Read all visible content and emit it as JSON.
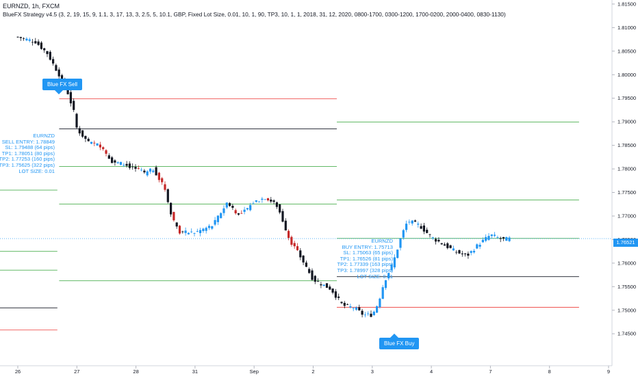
{
  "header": {
    "title": "EURNZD, 1h, FXCM",
    "strategy": "BlueFX Strategy v4.5 (3, 2, 19, 15, 9, 1.1, 3, 17, 13, 3, 2.5, 5, 10.1, GBP, Fixed Lot Size, 0.01, 10, 1, 90, TP3, 10, 1, 1, 2018, 31, 12, 2020, 0800-1700, 0300-1200, 1700-0200, 2000-0400, 0830-1130)"
  },
  "colors": {
    "up": "#2196f3",
    "down": "#131722",
    "down_accent": "#c62828",
    "tp": "#4caf50",
    "sl": "#ef5350",
    "entry": "#131722",
    "accent": "#2196f3"
  },
  "sell_signal": {
    "label": "Blue FX Sell",
    "info": [
      "EURNZD",
      "SELL ENTRY: 1.78849",
      "SL: 1.79488 (64 pips)",
      "TP1: 1.78051 (80 pips)",
      "TP2: 1.77253 (160 pips)",
      "TP3: 1.75625 (322 pips)",
      "LOT SIZE: 0.01"
    ]
  },
  "buy_signal": {
    "label": "Blue FX Buy",
    "info": [
      "EURNZD",
      "BUY ENTRY: 1.75713",
      "SL: 1.75063 (65 pips)",
      "TP1: 1.76526 (81 pips)",
      "TP2: 1.77339 (163 pips)",
      "TP3: 1.78997 (328 pips)",
      "LOT SIZE: 0.01"
    ]
  },
  "current_price": "1.76521",
  "chart_data": {
    "type": "candlestick",
    "symbol": "EURNZD",
    "timeframe": "1h",
    "ylim": [
      1.7425,
      1.8155
    ],
    "y_ticks": [
      "1.81500",
      "1.81000",
      "1.80500",
      "1.80000",
      "1.79500",
      "1.79000",
      "1.78500",
      "1.78000",
      "1.77500",
      "1.77000",
      "1.76500",
      "1.76000",
      "1.75500",
      "1.75000",
      "1.74500"
    ],
    "x_ticks": [
      "26",
      "27",
      "28",
      "31",
      "Sep",
      "2",
      "3",
      "4",
      "7",
      "8",
      "9"
    ],
    "price_path": [
      [
        0,
        1.808
      ],
      [
        0.3,
        1.807
      ],
      [
        0.5,
        1.8045
      ],
      [
        0.7,
        1.8
      ],
      [
        0.85,
        1.796
      ],
      [
        0.95,
        1.792
      ],
      [
        1.0,
        1.7885
      ],
      [
        1.2,
        1.7855
      ],
      [
        1.4,
        1.785
      ],
      [
        1.6,
        1.7815
      ],
      [
        1.8,
        1.781
      ],
      [
        2.0,
        1.78
      ],
      [
        2.15,
        1.779
      ],
      [
        2.3,
        1.78
      ],
      [
        2.5,
        1.7755
      ],
      [
        2.6,
        1.77
      ],
      [
        2.75,
        1.7665
      ],
      [
        3.0,
        1.7665
      ],
      [
        3.3,
        1.768
      ],
      [
        3.55,
        1.773
      ],
      [
        3.75,
        1.77
      ],
      [
        4.0,
        1.773
      ],
      [
        4.2,
        1.774
      ],
      [
        4.4,
        1.772
      ],
      [
        4.6,
        1.765
      ],
      [
        4.8,
        1.761
      ],
      [
        5.0,
        1.7565
      ],
      [
        5.3,
        1.7545
      ],
      [
        5.5,
        1.751
      ],
      [
        5.7,
        1.7505
      ],
      [
        5.85,
        1.749
      ],
      [
        6.0,
        1.749
      ],
      [
        6.1,
        1.7515
      ],
      [
        6.2,
        1.756
      ],
      [
        6.35,
        1.76
      ],
      [
        6.5,
        1.766
      ],
      [
        6.6,
        1.769
      ],
      [
        6.8,
        1.768
      ],
      [
        7.0,
        1.7655
      ],
      [
        7.2,
        1.764
      ],
      [
        7.4,
        1.7625
      ],
      [
        7.6,
        1.7615
      ],
      [
        7.8,
        1.764
      ],
      [
        8.0,
        1.766
      ],
      [
        8.2,
        1.765
      ],
      [
        8.35,
        1.7652
      ]
    ],
    "levels": [
      {
        "signal": "sell",
        "kind": "SL",
        "price": 1.79488,
        "from": 0.7,
        "to": 5.4
      },
      {
        "signal": "sell",
        "kind": "ENTRY",
        "price": 1.78849,
        "from": 0.7,
        "to": 5.4
      },
      {
        "signal": "sell",
        "kind": "TP1",
        "price": 1.78051,
        "from": 0.7,
        "to": 5.4
      },
      {
        "signal": "sell",
        "kind": "TP2",
        "price": 1.77253,
        "from": 0.7,
        "to": 5.4
      },
      {
        "signal": "sell",
        "kind": "TP3",
        "price": 1.75625,
        "from": 0.7,
        "to": 5.4
      },
      {
        "signal": "buy",
        "kind": "TP3",
        "price": 1.78997,
        "from": 5.4,
        "to": 9.5
      },
      {
        "signal": "buy",
        "kind": "TP2",
        "price": 1.77339,
        "from": 5.4,
        "to": 9.5
      },
      {
        "signal": "buy",
        "kind": "TP1",
        "price": 1.76526,
        "from": 5.4,
        "to": 9.5
      },
      {
        "signal": "buy",
        "kind": "ENTRY",
        "price": 1.75713,
        "from": 5.4,
        "to": 9.5
      },
      {
        "signal": "buy",
        "kind": "SL",
        "price": 1.75063,
        "from": 5.4,
        "to": 9.5
      }
    ],
    "prior_levels": [
      {
        "kind": "TP",
        "price": 1.7755
      },
      {
        "kind": "TP",
        "price": 1.7625
      },
      {
        "kind": "TP",
        "price": 1.7585
      },
      {
        "kind": "ENTRY",
        "price": 1.7505
      },
      {
        "kind": "SL",
        "price": 1.7458
      }
    ]
  }
}
